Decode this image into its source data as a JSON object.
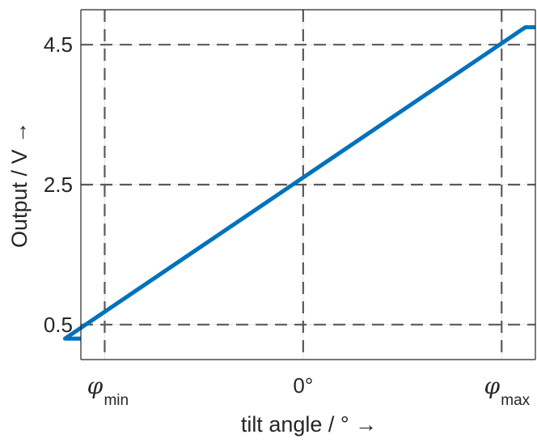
{
  "chart_data": {
    "type": "line",
    "xlabel": "tilt angle / ° →",
    "ylabel": "Output / V →",
    "xlim": [
      -1.12,
      1.17
    ],
    "ylim": [
      0.0,
      5.0
    ],
    "x_ticks": [
      {
        "value": -1,
        "symbol": "φ",
        "sub": "min"
      },
      {
        "value": 0,
        "label": "0°"
      },
      {
        "value": 1,
        "symbol": "φ",
        "sub": "max"
      }
    ],
    "y_ticks": [
      {
        "value": 0.5,
        "label": "0.5"
      },
      {
        "value": 2.5,
        "label": "2.5"
      },
      {
        "value": 4.5,
        "label": "4.5"
      }
    ],
    "grid": true,
    "series": [
      {
        "color": "#0072BD",
        "x": [
          -1.12,
          -1.12,
          -1.2,
          1.12,
          1.17
        ],
        "y": [
          0.3,
          0.3,
          0.3,
          4.75,
          4.75
        ],
        "points": [
          [
            -1.12,
            0.3
          ],
          [
            -1.12,
            0.3
          ],
          [
            -1.2,
            0.3
          ],
          [
            1.12,
            4.75
          ],
          [
            1.17,
            4.75
          ]
        ]
      }
    ],
    "reference_lines": [
      {
        "x": -1,
        "y": 0.5
      },
      {
        "x": 0,
        "y": 2.5
      },
      {
        "x": 1,
        "y": 4.5
      }
    ]
  }
}
